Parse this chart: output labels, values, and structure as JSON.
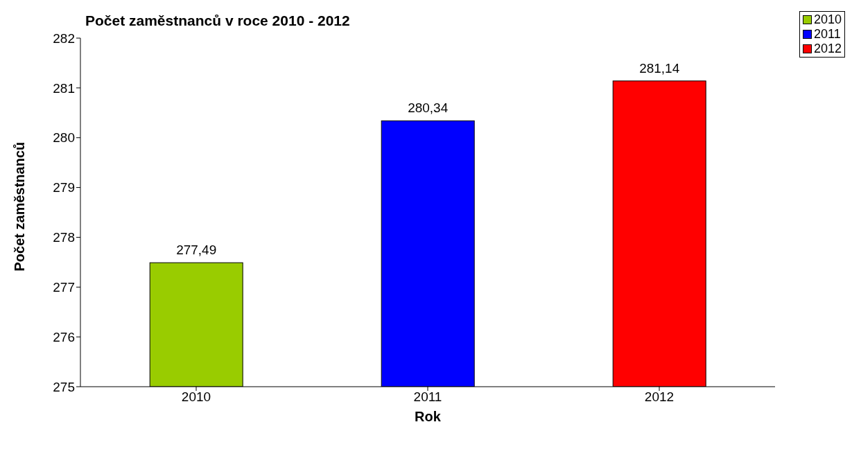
{
  "chart_data": {
    "type": "bar",
    "title": "Počet zaměstnanců v roce 2010 - 2012",
    "xlabel": "Rok",
    "ylabel": "Počet zaměstnanců",
    "categories": [
      "2010",
      "2011",
      "2012"
    ],
    "series": [
      {
        "name": "2010",
        "color": "#99cc00",
        "values": [
          277.49,
          null,
          null
        ],
        "value_labels": [
          "277,49",
          null,
          null
        ]
      },
      {
        "name": "2011",
        "color": "#0000ff",
        "values": [
          null,
          280.34,
          null
        ],
        "value_labels": [
          null,
          "280,34",
          null
        ]
      },
      {
        "name": "2012",
        "color": "#ff0000",
        "values": [
          null,
          null,
          281.14
        ],
        "value_labels": [
          null,
          null,
          "281,14"
        ]
      }
    ],
    "ylim": [
      275,
      282
    ],
    "yticks": [
      275,
      276,
      277,
      278,
      279,
      280,
      281,
      282
    ],
    "grid": false,
    "legend": "top right"
  }
}
